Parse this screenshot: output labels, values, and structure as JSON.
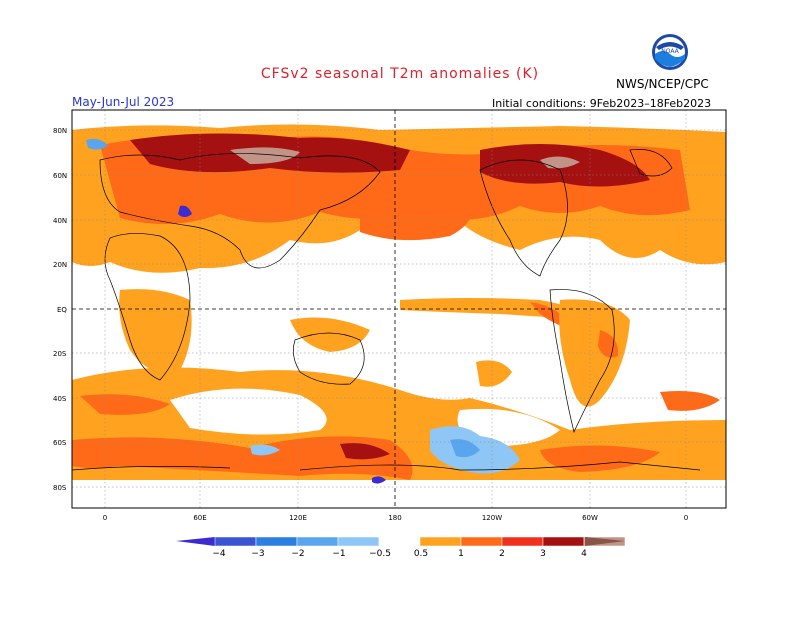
{
  "title": "CFSv2 seasonal T2m anomalies (K)",
  "org": "NWS/NCEP/CPC",
  "season": "May-Jun-Jul 2023",
  "initial_conditions": "Initial conditions: 9Feb2023–18Feb2023",
  "logo_text": "NOAA",
  "lat_labels": [
    "80N",
    "60N",
    "40N",
    "20N",
    "EQ",
    "20S",
    "40S",
    "60S",
    "80S"
  ],
  "lon_labels": [
    "0",
    "60E",
    "120E",
    "180",
    "120W",
    "60W",
    "0"
  ],
  "colorbar": {
    "ticks": [
      "−4",
      "−3",
      "−2",
      "−1",
      "−0.5",
      "0.5",
      "1",
      "2",
      "3",
      "4"
    ],
    "colors": [
      "#3b2bd1",
      "#3a55d4",
      "#2a7fe0",
      "#5aa6ee",
      "#8ec7f5",
      "#ffffff",
      "#ffa21f",
      "#ff6a18",
      "#f0321c",
      "#a51010",
      "#c29488",
      "#8a5548"
    ]
  },
  "icons": {
    "logo": "noaa-logo-icon"
  }
}
